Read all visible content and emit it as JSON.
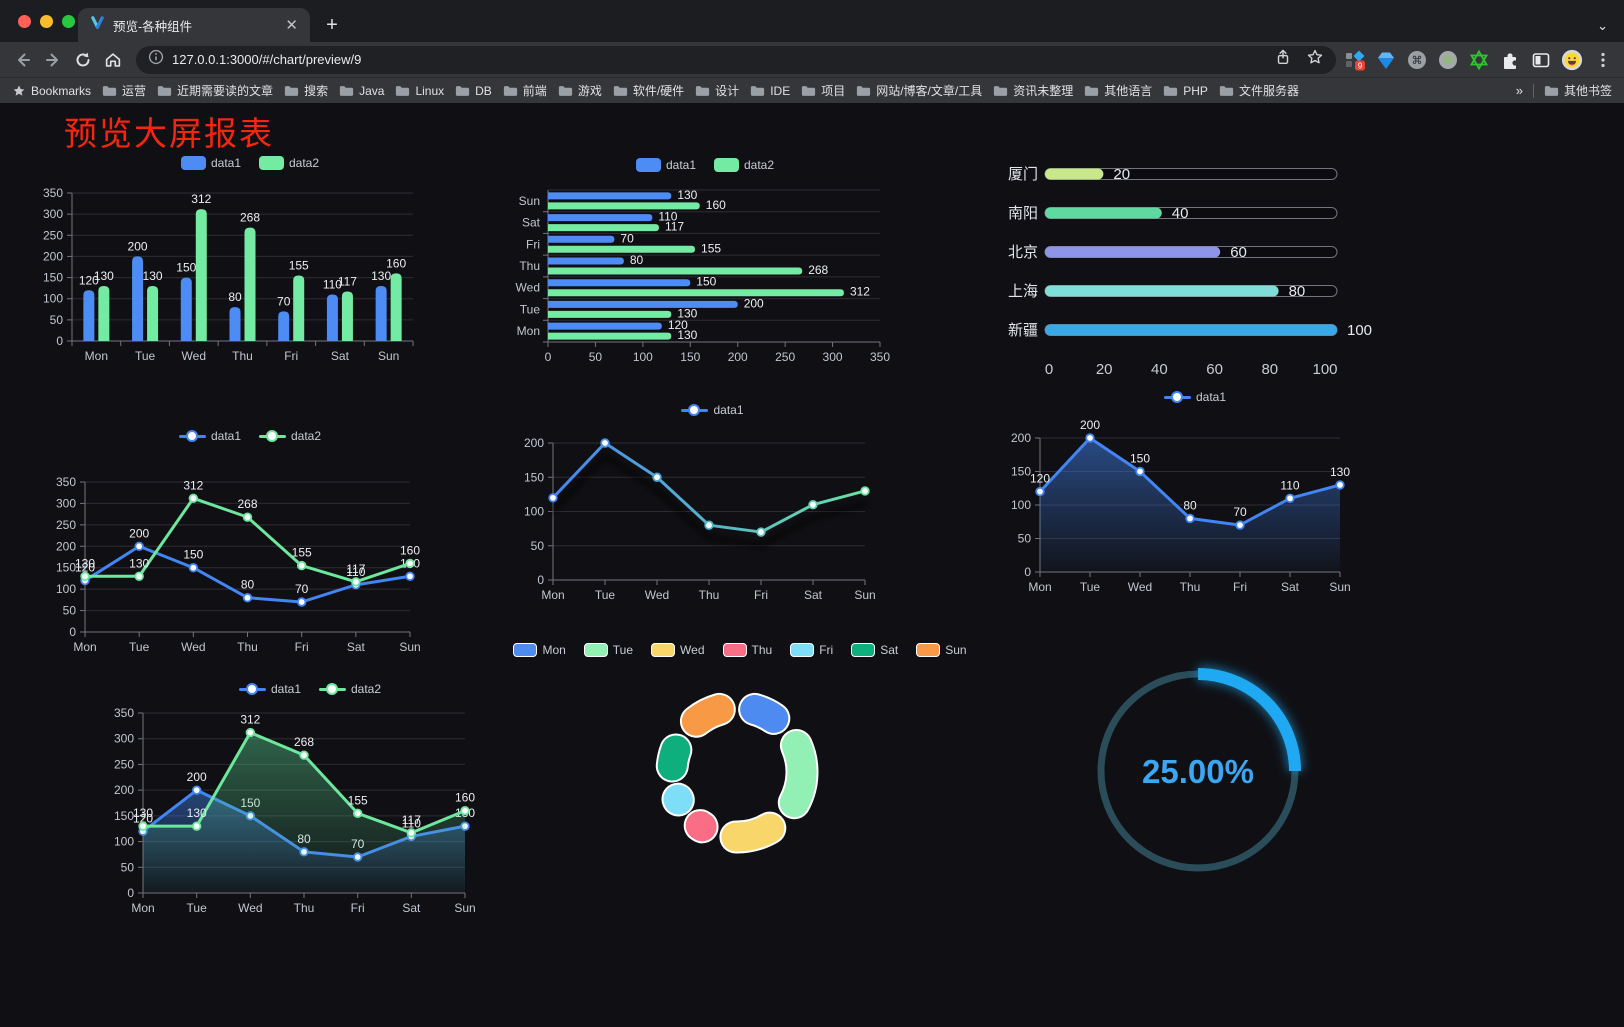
{
  "browser": {
    "tab_title": "预览-各种组件",
    "url": "127.0.0.1:3000/#/chart/preview/9",
    "new_tab_label": "+",
    "tab_chevron": "⌄",
    "extension_badge": "9",
    "bookmarks_label": "Bookmarks",
    "bookmarks": [
      "运营",
      "近期需要读的文章",
      "搜索",
      "Java",
      "Linux",
      "DB",
      "前端",
      "游戏",
      "软件/硬件",
      "设计",
      "IDE",
      "项目",
      "网站/博客/文章/工具",
      "资讯未整理",
      "其他语言",
      "PHP",
      "文件服务器"
    ],
    "bookmarks_overflow": "»",
    "other_bookmarks": "其他书签"
  },
  "page": {
    "title": "预览大屏报表",
    "title_color": "#f5260d",
    "background": "#101014"
  },
  "chart_data": [
    {
      "type": "bar",
      "categories": [
        "Mon",
        "Tue",
        "Wed",
        "Thu",
        "Fri",
        "Sat",
        "Sun"
      ],
      "series": [
        {
          "name": "data1",
          "color": "#4d8cf5",
          "values": [
            120,
            200,
            150,
            80,
            70,
            110,
            130
          ]
        },
        {
          "name": "data2",
          "color": "#74eba3",
          "values": [
            130,
            130,
            312,
            268,
            155,
            117,
            160
          ]
        }
      ],
      "ylim": [
        0,
        350
      ],
      "ystep": 50,
      "grid": true,
      "legend_position": "top"
    },
    {
      "type": "bar-horizontal",
      "categories": [
        "Mon",
        "Tue",
        "Wed",
        "Thu",
        "Fri",
        "Sat",
        "Sun"
      ],
      "series": [
        {
          "name": "data1",
          "color": "#4d8cf5",
          "values": [
            120,
            200,
            150,
            80,
            70,
            110,
            130
          ]
        },
        {
          "name": "data2",
          "color": "#74eba3",
          "values": [
            130,
            130,
            312,
            268,
            155,
            117,
            160
          ]
        }
      ],
      "xlim": [
        0,
        350
      ],
      "xstep": 50,
      "grid": true,
      "legend_position": "top"
    },
    {
      "type": "progress-bars",
      "rows": [
        {
          "label": "厦门",
          "value": 20,
          "color": "#c9e88c"
        },
        {
          "label": "南阳",
          "value": 40,
          "color": "#5fd8a2"
        },
        {
          "label": "北京",
          "value": 60,
          "color": "#8e94e8"
        },
        {
          "label": "上海",
          "value": 80,
          "color": "#7fdfd8"
        },
        {
          "label": "新疆",
          "value": 100,
          "color": "#3aa7e6"
        }
      ],
      "xlim": [
        0,
        100
      ],
      "xstep": 20
    },
    {
      "type": "line",
      "categories": [
        "Mon",
        "Tue",
        "Wed",
        "Thu",
        "Fri",
        "Sat",
        "Sun"
      ],
      "series": [
        {
          "name": "data1",
          "color": "#4285f4",
          "values": [
            120,
            200,
            150,
            80,
            70,
            110,
            130
          ],
          "labels": true
        },
        {
          "name": "data2",
          "color": "#6de79e",
          "values": [
            130,
            130,
            312,
            268,
            155,
            117,
            160
          ],
          "labels": true
        }
      ],
      "ylim": [
        0,
        350
      ],
      "ystep": 50,
      "grid": true,
      "legend_position": "top"
    },
    {
      "type": "line",
      "categories": [
        "Mon",
        "Tue",
        "Wed",
        "Thu",
        "Fri",
        "Sat",
        "Sun"
      ],
      "series": [
        {
          "name": "data1",
          "gradient": [
            "#4285f4",
            "#69e3a0"
          ],
          "values": [
            120,
            200,
            150,
            80,
            70,
            110,
            130
          ],
          "labels": false,
          "shadow": true
        }
      ],
      "ylim": [
        0,
        200
      ],
      "ystep": 50,
      "grid": true,
      "legend_position": "top"
    },
    {
      "type": "area",
      "categories": [
        "Mon",
        "Tue",
        "Wed",
        "Thu",
        "Fri",
        "Sat",
        "Sun"
      ],
      "series": [
        {
          "name": "data1",
          "color": "#4285f4",
          "values": [
            120,
            200,
            150,
            80,
            70,
            110,
            130
          ],
          "labels": true,
          "area_from": "rgba(66,133,244,0.50)",
          "area_to": "rgba(66,133,244,0.03)"
        }
      ],
      "ylim": [
        0,
        200
      ],
      "ystep": 50,
      "grid": true,
      "legend_position": "top"
    },
    {
      "type": "area",
      "categories": [
        "Mon",
        "Tue",
        "Wed",
        "Thu",
        "Fri",
        "Sat",
        "Sun"
      ],
      "series": [
        {
          "name": "data1",
          "color": "#4285f4",
          "values": [
            120,
            200,
            150,
            80,
            70,
            110,
            130
          ],
          "labels": true,
          "area_from": "rgba(66,133,244,0.45)",
          "area_to": "rgba(66,133,244,0.03)"
        },
        {
          "name": "data2",
          "color": "#6de79e",
          "values": [
            130,
            130,
            312,
            268,
            155,
            117,
            160
          ],
          "labels": true,
          "area_from": "rgba(84,200,138,0.45)",
          "area_to": "rgba(84,200,138,0.03)"
        }
      ],
      "ylim": [
        0,
        350
      ],
      "ystep": 50,
      "grid": true,
      "legend_position": "top"
    },
    {
      "type": "pie",
      "items": [
        {
          "label": "Mon",
          "value": 120,
          "color": "#4e8bf0"
        },
        {
          "label": "Tue",
          "value": 200,
          "color": "#92f0b4"
        },
        {
          "label": "Wed",
          "value": 150,
          "color": "#f8d66a"
        },
        {
          "label": "Thu",
          "value": 80,
          "color": "#f96e85"
        },
        {
          "label": "Fri",
          "value": 70,
          "color": "#7edef8"
        },
        {
          "label": "Sat",
          "value": 110,
          "color": "#0eae7d"
        },
        {
          "label": "Sun",
          "value": 130,
          "color": "#f89a45"
        }
      ],
      "legend_position": "top"
    },
    {
      "type": "gauge",
      "percent": 25,
      "value_label": "25.00%",
      "arc_color": "#1fa9f2",
      "track_color": "#2b4c59",
      "text_color": "#3aa7f2"
    }
  ]
}
